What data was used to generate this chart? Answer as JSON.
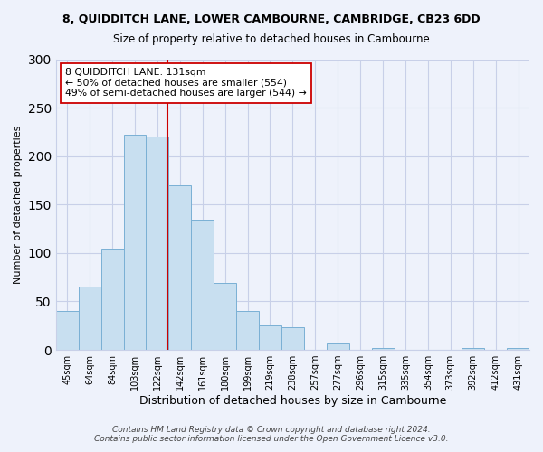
{
  "title": "8, QUIDDITCH LANE, LOWER CAMBOURNE, CAMBRIDGE, CB23 6DD",
  "subtitle": "Size of property relative to detached houses in Cambourne",
  "xlabel": "Distribution of detached houses by size in Cambourne",
  "ylabel": "Number of detached properties",
  "bar_labels": [
    "45sqm",
    "64sqm",
    "84sqm",
    "103sqm",
    "122sqm",
    "142sqm",
    "161sqm",
    "180sqm",
    "199sqm",
    "219sqm",
    "238sqm",
    "257sqm",
    "277sqm",
    "296sqm",
    "315sqm",
    "335sqm",
    "354sqm",
    "373sqm",
    "392sqm",
    "412sqm",
    "431sqm"
  ],
  "bar_values": [
    40,
    65,
    105,
    222,
    220,
    170,
    134,
    69,
    40,
    25,
    23,
    0,
    8,
    0,
    2,
    0,
    0,
    0,
    2,
    0,
    2
  ],
  "bar_color": "#c8dff0",
  "bar_edge_color": "#7ab0d4",
  "vline_color": "#cc0000",
  "ylim": [
    0,
    300
  ],
  "yticks": [
    0,
    50,
    100,
    150,
    200,
    250,
    300
  ],
  "annotation_text": "8 QUIDDITCH LANE: 131sqm\n← 50% of detached houses are smaller (554)\n49% of semi-detached houses are larger (544) →",
  "annotation_box_color": "#ffffff",
  "annotation_box_edge": "#cc0000",
  "footer": "Contains HM Land Registry data © Crown copyright and database right 2024.\nContains public sector information licensed under the Open Government Licence v3.0.",
  "bg_color": "#eef2fb",
  "grid_color": "#c8d0e8",
  "title_fontsize": 9,
  "subtitle_fontsize": 8.5
}
